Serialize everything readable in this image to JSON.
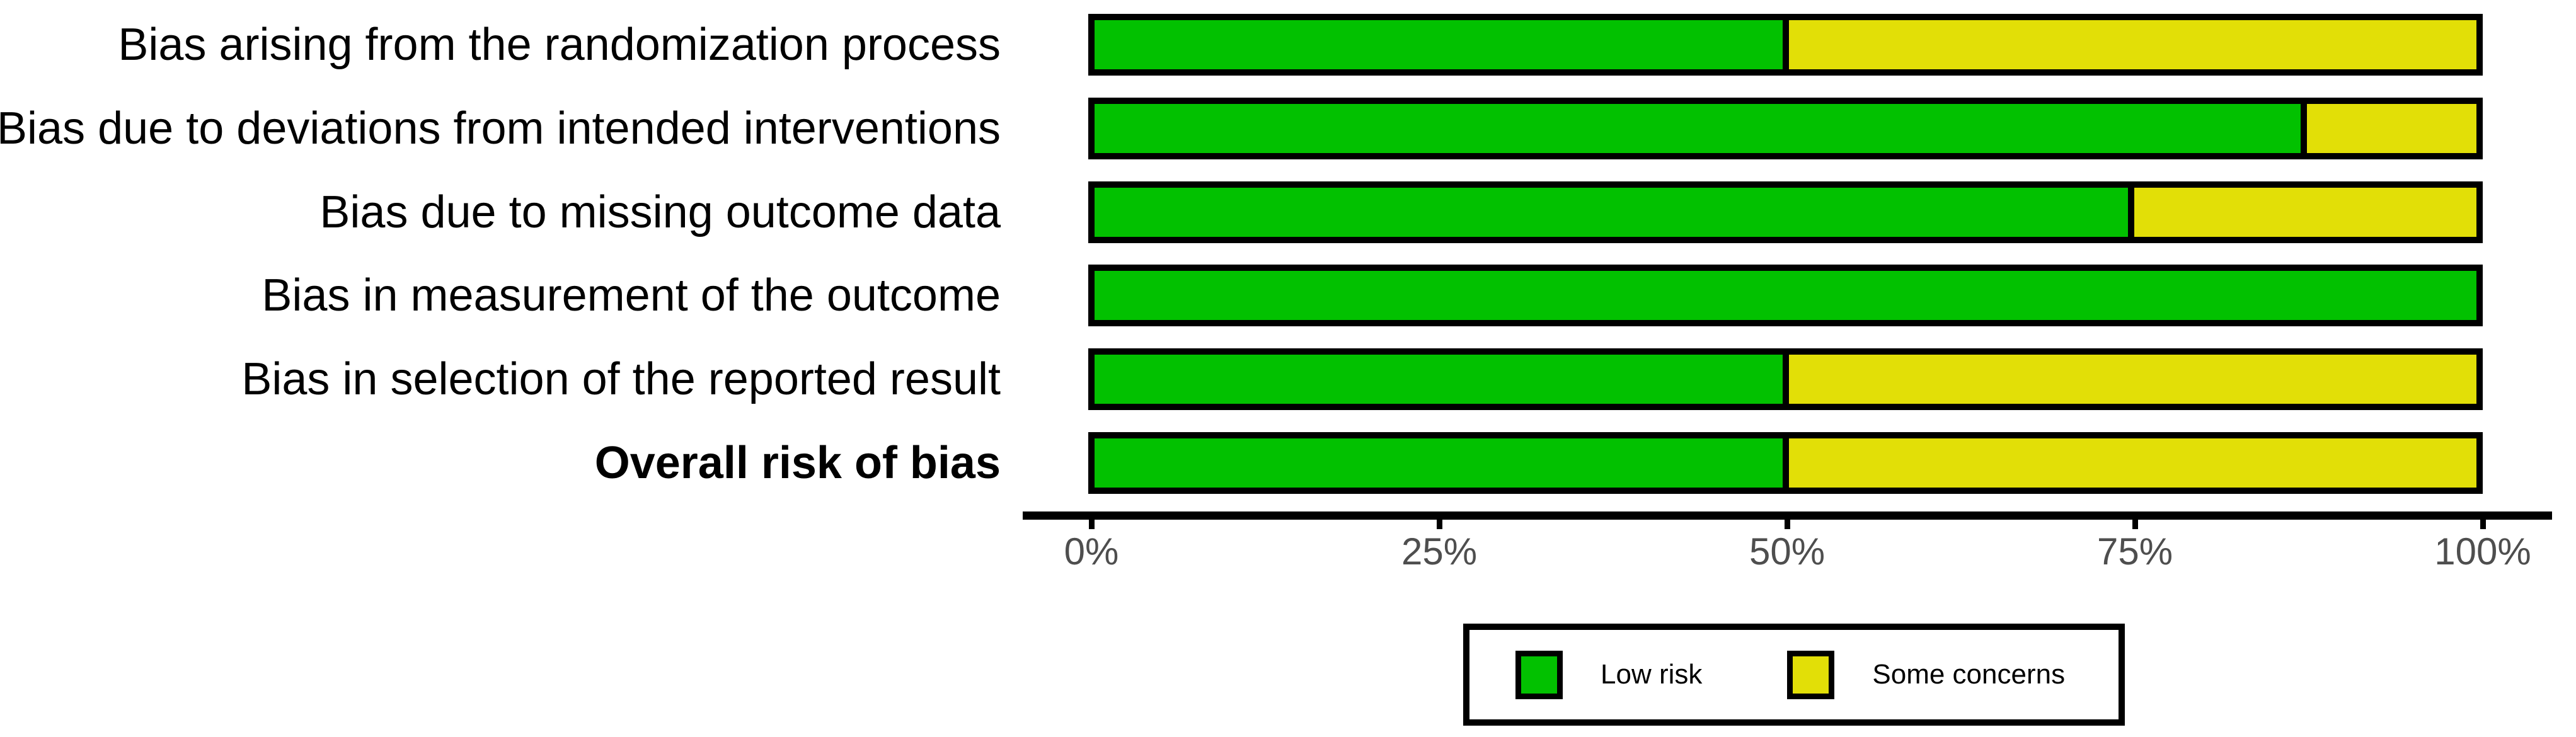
{
  "figure": {
    "background_color": "#FFFFFF",
    "outline_color": "#000000"
  },
  "chart_data": {
    "type": "bar",
    "variant": "horizontal-stacked-100percent",
    "title": "",
    "xlabel": "",
    "ylabel": "",
    "grid": false,
    "categories": [
      "Bias arising from the randomization process",
      "Bias due to deviations from intended interventions",
      "Bias due to missing outcome data",
      "Bias in measurement of the outcome",
      "Bias in selection of the reported result",
      "Overall risk of bias"
    ],
    "bold_category_index": 5,
    "series": [
      {
        "name": "Low risk",
        "color": "#02C100",
        "values_pct": [
          50,
          87.5,
          75,
          100,
          50,
          50
        ]
      },
      {
        "name": "Some concerns",
        "color": "#E2DF07",
        "values_pct": [
          50,
          12.5,
          25,
          0,
          50,
          50
        ]
      }
    ],
    "x_axis": {
      "range_pct": [
        0,
        100
      ],
      "ticks_pct": [
        0,
        25,
        50,
        75,
        100
      ],
      "tick_labels": [
        "0%",
        "25%",
        "50%",
        "75%",
        "100%"
      ],
      "tick_label_color": "#4E4E4E",
      "axis_line_color": "#000000"
    },
    "legend": {
      "position": "bottom-center",
      "entries": [
        {
          "label": "Low risk",
          "color": "#02C100"
        },
        {
          "label": "Some concerns",
          "color": "#E2DF07"
        }
      ]
    }
  }
}
